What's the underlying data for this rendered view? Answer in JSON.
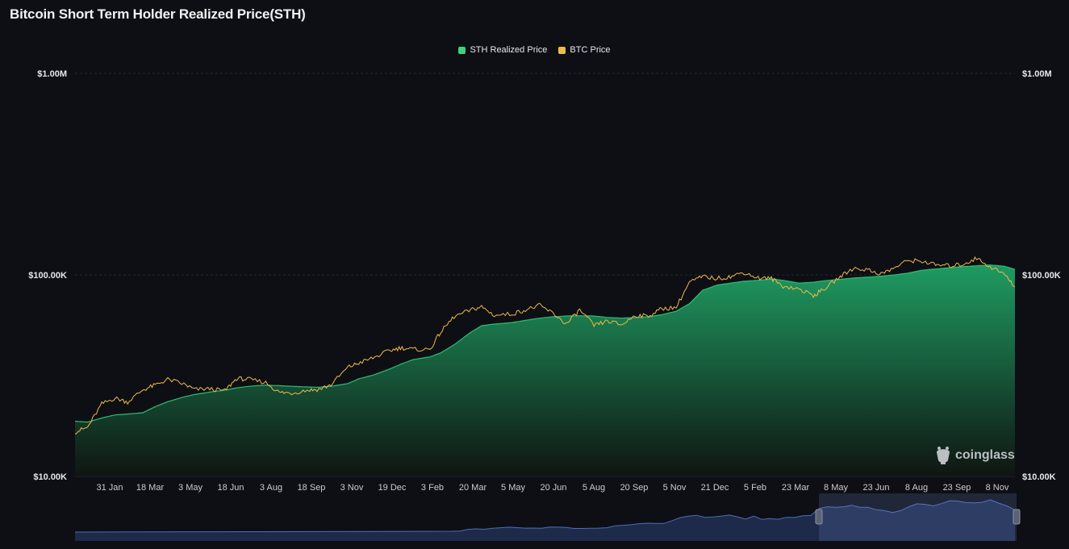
{
  "title": "Bitcoin Short Term Holder Realized Price(STH)",
  "watermark": "coinglass",
  "legend": [
    {
      "label": "STH Realized Price",
      "color": "#3fd17c",
      "icon": "square"
    },
    {
      "label": "BTC Price",
      "color": "#f0b94a",
      "icon": "square"
    }
  ],
  "colors": {
    "background": "#0d0f14",
    "sth_fill_top": "#1f9b61",
    "sth_fill_bottom": "#0f1512",
    "btc_line": "#f0b94a",
    "grid": "#262a33",
    "navigator_fill": "#1e2a4a",
    "navigator_line": "#4d6db8"
  },
  "chart_data": {
    "type": "area",
    "title": "Bitcoin Short Term Holder Realized Price(STH)",
    "xlabel": "",
    "ylabel": "",
    "y_scale": "log",
    "ylim": [
      10000,
      1000000
    ],
    "y_ticks": [
      {
        "value": 1000000,
        "label": "$1.00M"
      },
      {
        "value": 100000,
        "label": "$100.00K"
      },
      {
        "value": 10000,
        "label": "$10.00K"
      }
    ],
    "x_tick_labels": [
      "31 Jan",
      "18 Mar",
      "3 May",
      "18 Jun",
      "3 Aug",
      "18 Sep",
      "3 Nov",
      "19 Dec",
      "3 Feb",
      "20 Mar",
      "5 May",
      "20 Jun",
      "5 Aug",
      "20 Sep",
      "5 Nov",
      "21 Dec",
      "5 Feb",
      "23 Mar",
      "8 May",
      "23 Jun",
      "8 Aug",
      "23 Sep",
      "8 Nov"
    ],
    "grid": true,
    "legend_position": "top-center",
    "x": [
      "2023-01-01",
      "2023-01-15",
      "2023-01-31",
      "2023-02-15",
      "2023-03-01",
      "2023-03-18",
      "2023-04-01",
      "2023-04-15",
      "2023-05-03",
      "2023-05-15",
      "2023-06-01",
      "2023-06-18",
      "2023-07-01",
      "2023-07-15",
      "2023-08-03",
      "2023-08-18",
      "2023-09-01",
      "2023-09-18",
      "2023-10-01",
      "2023-10-15",
      "2023-11-03",
      "2023-11-15",
      "2023-12-01",
      "2023-12-19",
      "2024-01-01",
      "2024-01-15",
      "2024-02-03",
      "2024-02-15",
      "2024-03-01",
      "2024-03-20",
      "2024-04-01",
      "2024-04-15",
      "2024-05-05",
      "2024-05-20",
      "2024-06-05",
      "2024-06-20",
      "2024-07-05",
      "2024-07-20",
      "2024-08-05",
      "2024-08-20",
      "2024-09-05",
      "2024-09-20",
      "2024-10-05",
      "2024-10-20",
      "2024-11-05",
      "2024-11-20",
      "2024-12-05",
      "2024-12-21",
      "2025-01-05",
      "2025-01-20",
      "2025-02-05",
      "2025-02-20",
      "2025-03-05",
      "2025-03-23",
      "2025-04-08",
      "2025-04-20",
      "2025-05-08",
      "2025-05-23",
      "2025-06-08",
      "2025-06-23",
      "2025-07-08",
      "2025-07-23",
      "2025-08-08",
      "2025-08-23",
      "2025-09-08",
      "2025-09-23",
      "2025-10-08",
      "2025-10-23",
      "2025-11-08",
      "2025-11-20"
    ],
    "series": [
      {
        "name": "STH Realized Price",
        "values": [
          18800,
          18600,
          19500,
          20200,
          20400,
          20700,
          22200,
          23500,
          24800,
          25500,
          26200,
          26800,
          27500,
          28000,
          28400,
          28200,
          28000,
          27800,
          27700,
          28000,
          28900,
          30500,
          31800,
          34000,
          36000,
          38000,
          39200,
          41000,
          45000,
          52000,
          56000,
          57000,
          58000,
          59500,
          61000,
          62000,
          62500,
          62700,
          62500,
          61500,
          61000,
          61500,
          62000,
          63500,
          66000,
          72000,
          84000,
          89000,
          91000,
          93000,
          94000,
          95500,
          94000,
          91000,
          92000,
          93500,
          95000,
          96500,
          97500,
          98500,
          100000,
          102000,
          105500,
          107000,
          108500,
          110000,
          111000,
          112000,
          110500,
          106500
        ]
      },
      {
        "name": "BTC Price",
        "values": [
          16600,
          17500,
          22900,
          24500,
          23400,
          26900,
          28400,
          30300,
          28700,
          27000,
          27200,
          26600,
          30600,
          30300,
          29200,
          26100,
          25900,
          26800,
          27000,
          28500,
          34800,
          36500,
          38700,
          42000,
          43500,
          42700,
          42600,
          52000,
          62000,
          67000,
          69500,
          63000,
          64000,
          67000,
          70500,
          64500,
          57000,
          67000,
          56000,
          59000,
          56500,
          63000,
          62500,
          68000,
          69000,
          92000,
          98000,
          96000,
          98000,
          103000,
          96500,
          96000,
          88000,
          85000,
          79000,
          85000,
          98000,
          108000,
          106000,
          101000,
          108500,
          118000,
          117000,
          112000,
          111000,
          113000,
          121000,
          110000,
          101000,
          87000
        ]
      }
    ]
  }
}
